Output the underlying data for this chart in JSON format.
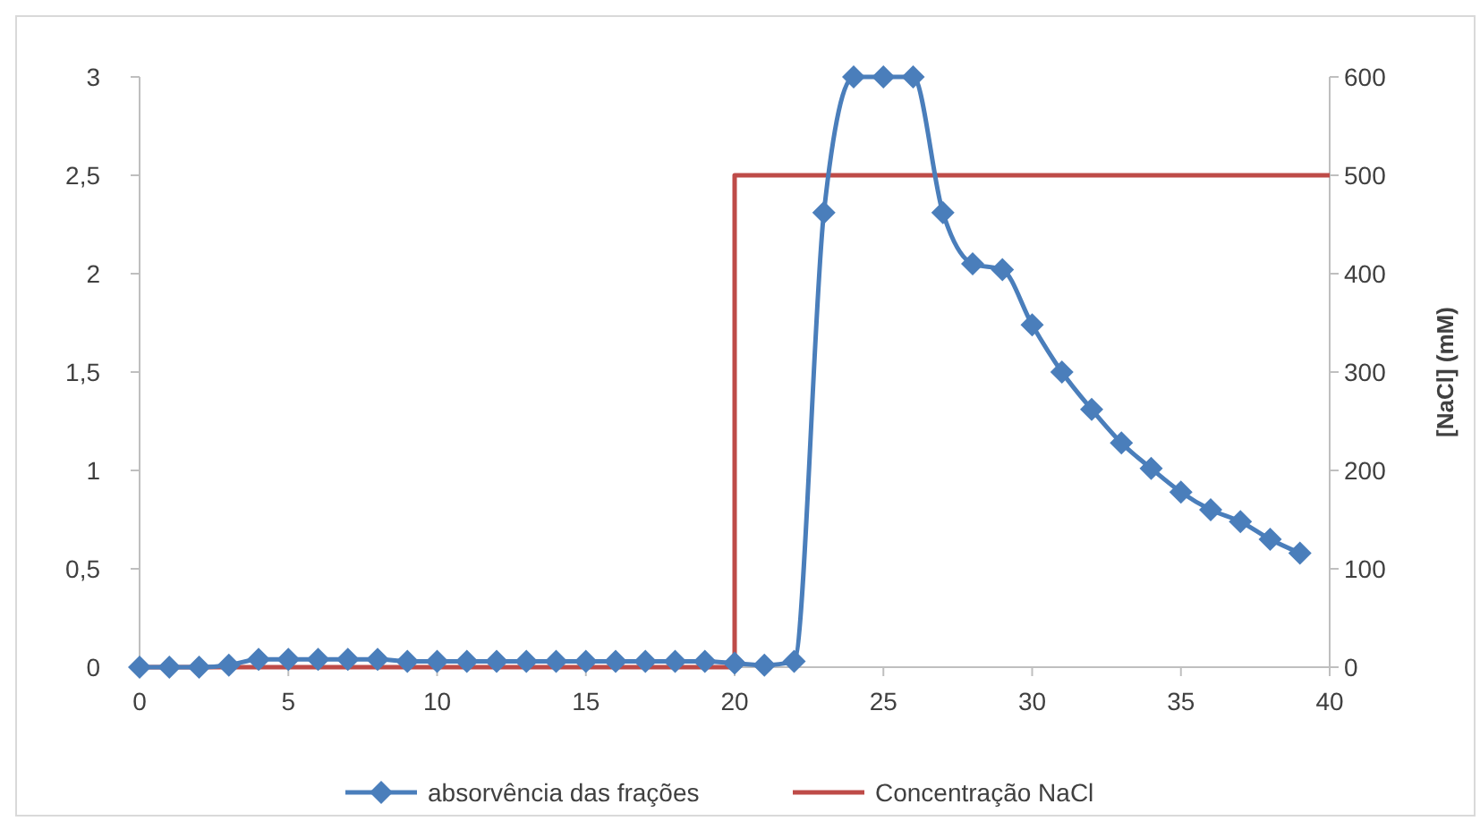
{
  "chart_data": {
    "type": "line",
    "y2label": "[NaCl] (mM)",
    "xlim": [
      0,
      40
    ],
    "xticks": [
      0,
      5,
      10,
      15,
      20,
      25,
      30,
      35,
      40
    ],
    "ylim": [
      0,
      3
    ],
    "yticks": [
      0,
      {
        "value": 0.5,
        "label": "0,5"
      },
      1,
      {
        "value": 1.5,
        "label": "1,5"
      },
      2,
      {
        "value": 2.5,
        "label": "2,5"
      },
      3
    ],
    "y2lim": [
      0,
      600
    ],
    "y2ticks": [
      0,
      100,
      200,
      300,
      400,
      500,
      600
    ],
    "grid": false,
    "legend": "bottom",
    "series": [
      {
        "name": "absorvência das frações",
        "color": "#4a7ebb",
        "marker": "diamond",
        "x": [
          0,
          1,
          2,
          3,
          4,
          5,
          6,
          7,
          8,
          9,
          10,
          11,
          12,
          13,
          14,
          15,
          16,
          17,
          18,
          19,
          20,
          21,
          22,
          23,
          24,
          25,
          26,
          27,
          28,
          29,
          30,
          31,
          32,
          33,
          34,
          35,
          36,
          37,
          38,
          39
        ],
        "values": [
          0,
          0,
          0,
          0.01,
          0.04,
          0.04,
          0.04,
          0.04,
          0.04,
          0.03,
          0.03,
          0.03,
          0.03,
          0.03,
          0.03,
          0.03,
          0.03,
          0.03,
          0.03,
          0.03,
          0.02,
          0.01,
          0.03,
          2.31,
          3,
          3,
          3,
          2.31,
          2.05,
          2.02,
          1.74,
          1.5,
          1.31,
          1.14,
          1.01,
          0.89,
          0.8,
          0.74,
          0.65,
          0.58
        ]
      },
      {
        "name": "Concentração NaCl",
        "color": "#be4b48",
        "marker": "none",
        "axis": "y2",
        "x": [
          0,
          20,
          20,
          40
        ],
        "values": [
          0,
          0,
          500,
          500
        ]
      }
    ]
  }
}
